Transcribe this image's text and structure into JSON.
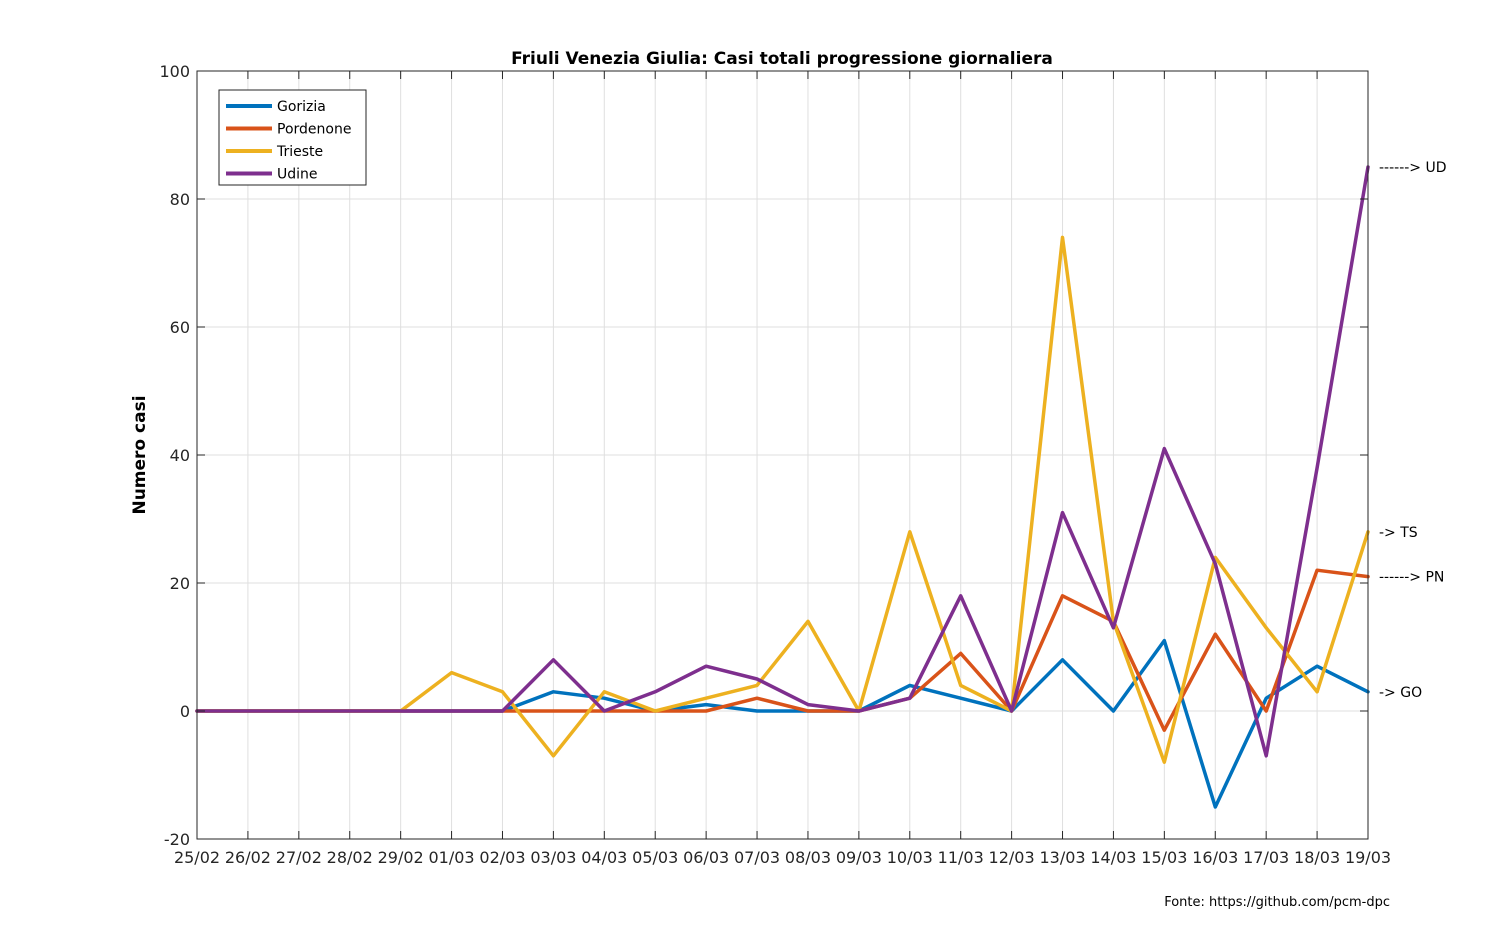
{
  "chart_data": {
    "type": "line",
    "title": "Friuli Venezia Giulia: Casi totali progressione giornaliera",
    "xlabel": "",
    "ylabel": "Numero casi",
    "ylim": [
      -20,
      100
    ],
    "yticks": [
      -20,
      0,
      20,
      40,
      60,
      80,
      100
    ],
    "grid": true,
    "legend_position": "top-left",
    "categories": [
      "25/02",
      "26/02",
      "27/02",
      "28/02",
      "29/02",
      "01/03",
      "02/03",
      "03/03",
      "04/03",
      "05/03",
      "06/03",
      "07/03",
      "08/03",
      "09/03",
      "10/03",
      "11/03",
      "12/03",
      "13/03",
      "14/03",
      "15/03",
      "16/03",
      "17/03",
      "18/03",
      "19/03"
    ],
    "series": [
      {
        "name": "Gorizia",
        "color": "#0072BD",
        "values": [
          0,
          0,
          0,
          0,
          0,
          0,
          0,
          3,
          2,
          0,
          1,
          0,
          0,
          0,
          4,
          2,
          0,
          8,
          0,
          11,
          -15,
          2,
          7,
          3
        ]
      },
      {
        "name": "Pordenone",
        "color": "#D95319",
        "values": [
          0,
          0,
          0,
          0,
          0,
          0,
          0,
          0,
          0,
          0,
          0,
          2,
          0,
          0,
          2,
          9,
          0,
          18,
          14,
          -3,
          12,
          0,
          22,
          21
        ]
      },
      {
        "name": "Trieste",
        "color": "#EDB120",
        "values": [
          0,
          0,
          0,
          0,
          0,
          6,
          3,
          -7,
          3,
          0,
          2,
          4,
          14,
          0,
          28,
          4,
          0,
          74,
          14,
          -8,
          24,
          13,
          3,
          28
        ]
      },
      {
        "name": "Udine",
        "color": "#7E2F8E",
        "values": [
          0,
          0,
          0,
          0,
          0,
          0,
          0,
          8,
          0,
          3,
          7,
          5,
          1,
          0,
          2,
          18,
          0,
          31,
          13,
          41,
          23,
          -7,
          38,
          85
        ]
      }
    ],
    "annotations": [
      {
        "text": "------> UD",
        "y": 85
      },
      {
        "text": "-> TS",
        "y": 28
      },
      {
        "text": "------> PN",
        "y": 21
      },
      {
        "text": "-> GO",
        "y": 3
      }
    ],
    "source": "Fonte: https://github.com/pcm-dpc"
  }
}
